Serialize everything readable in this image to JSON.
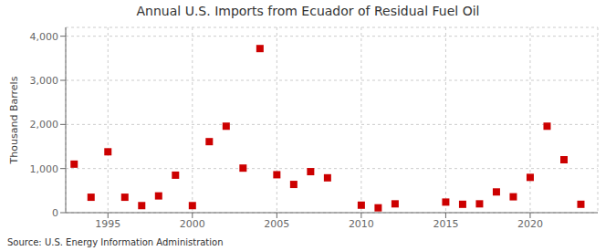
{
  "chart_data": {
    "type": "scatter",
    "title": "Annual U.S. Imports from Ecuador of Residual Fuel Oil",
    "y_label": "Thousand Barrels",
    "source": "Source: U.S. Energy Information Administration",
    "x": [
      1993,
      1994,
      1995,
      1996,
      1997,
      1998,
      1999,
      2000,
      2001,
      2002,
      2003,
      2004,
      2005,
      2006,
      2007,
      2008,
      2010,
      2011,
      2012,
      2015,
      2016,
      2017,
      2018,
      2019,
      2020,
      2021,
      2022,
      2023
    ],
    "values": [
      1100,
      350,
      1380,
      350,
      160,
      380,
      850,
      160,
      1610,
      1960,
      1010,
      3720,
      860,
      640,
      930,
      790,
      170,
      110,
      200,
      240,
      190,
      200,
      470,
      360,
      800,
      1960,
      1200,
      190
    ],
    "color": "#cc0000",
    "marker": "square",
    "xlim": [
      1992.5,
      2024
    ],
    "ylim": [
      0,
      4200
    ],
    "xticks": [
      1995,
      2000,
      2005,
      2010,
      2015,
      2020
    ],
    "yticks": [
      0,
      {
        "value": 1000,
        "label": "1,000"
      },
      {
        "value": 2000,
        "label": "2,000"
      },
      {
        "value": 3000,
        "label": "3,000"
      },
      {
        "value": 4000,
        "label": "4,000"
      }
    ],
    "grid": true
  }
}
